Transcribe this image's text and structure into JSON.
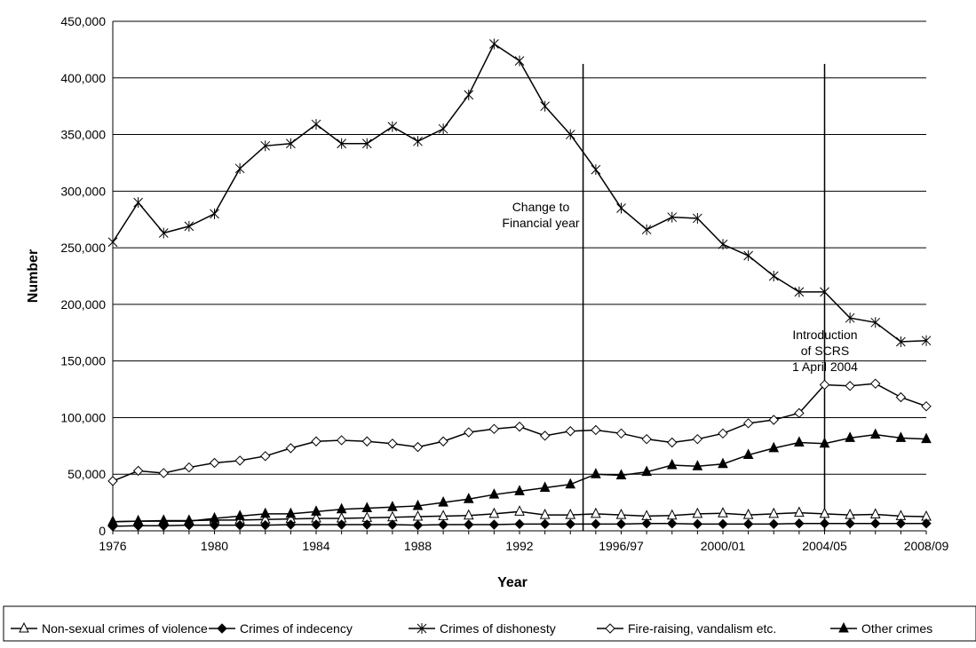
{
  "chart_data": {
    "type": "line",
    "title": "",
    "xlabel": "Year",
    "ylabel": "Number",
    "ylim": [
      0,
      450000
    ],
    "yticks": [
      "0",
      "50,000",
      "100,000",
      "150,000",
      "200,000",
      "250,000",
      "300,000",
      "350,000",
      "400,000",
      "450,000"
    ],
    "ytick_values": [
      0,
      50000,
      100000,
      150000,
      200000,
      250000,
      300000,
      350000,
      400000,
      450000
    ],
    "x": [
      "1976",
      "1977",
      "1978",
      "1979",
      "1980",
      "1981",
      "1982",
      "1983",
      "1984",
      "1985",
      "1986",
      "1987",
      "1988",
      "1989",
      "1990",
      "1991",
      "1992",
      "1993",
      "1994",
      "1995/96",
      "1996/97",
      "1997/98",
      "1998/99",
      "1999/00",
      "2000/01",
      "2001/02",
      "2002/03",
      "2003/04",
      "2004/05",
      "2005/06",
      "2006/07",
      "2007/08",
      "2008/09"
    ],
    "xtick_labels": [
      {
        "label": "1976",
        "index": 0
      },
      {
        "label": "1980",
        "index": 4
      },
      {
        "label": "1984",
        "index": 8
      },
      {
        "label": "1988",
        "index": 12
      },
      {
        "label": "1992",
        "index": 16
      },
      {
        "label": "1996/97",
        "index": 20
      },
      {
        "label": "2000/01",
        "index": 24
      },
      {
        "label": "2004/05",
        "index": 28
      },
      {
        "label": "2008/09",
        "index": 32
      }
    ],
    "grid": "horizontal",
    "legend_position": "bottom",
    "series": [
      {
        "name": "Non-sexual crimes of violence",
        "marker": "open-triangle",
        "values": [
          8000,
          8500,
          9000,
          9000,
          9500,
          9500,
          10000,
          10500,
          11000,
          11000,
          11500,
          12000,
          12500,
          13000,
          13500,
          15000,
          17000,
          14000,
          14000,
          15000,
          14000,
          13000,
          13500,
          15000,
          15500,
          14000,
          15000,
          16000,
          15000,
          14000,
          14500,
          13000,
          12500
        ]
      },
      {
        "name": "Crimes of indecency",
        "marker": "filled-diamond",
        "values": [
          4000,
          4500,
          4500,
          5000,
          5000,
          5000,
          5000,
          5500,
          5500,
          5500,
          5500,
          5500,
          5000,
          5500,
          5500,
          5500,
          6000,
          6000,
          6000,
          6000,
          6000,
          6500,
          6500,
          6000,
          6000,
          6000,
          6000,
          6500,
          6500,
          6500,
          6500,
          6500,
          6500
        ]
      },
      {
        "name": "Crimes of dishonesty",
        "marker": "asterisk",
        "values": [
          255000,
          290000,
          263000,
          269000,
          280000,
          320000,
          340000,
          342000,
          359000,
          342000,
          342000,
          357000,
          344000,
          355000,
          385000,
          430000,
          415000,
          375000,
          350000,
          319000,
          285000,
          266000,
          277000,
          276000,
          253000,
          243000,
          225000,
          211000,
          211000,
          188000,
          184000,
          167000,
          168000
        ]
      },
      {
        "name": "Fire-raising, vandalism etc.",
        "marker": "open-diamond",
        "values": [
          44000,
          53000,
          51000,
          56000,
          60000,
          62000,
          66000,
          73000,
          79000,
          80000,
          79000,
          77000,
          74000,
          79000,
          87000,
          90000,
          92000,
          84000,
          88000,
          89000,
          86000,
          81000,
          78000,
          81000,
          86000,
          95000,
          98000,
          104000,
          129000,
          128000,
          130000,
          118000,
          110000
        ]
      },
      {
        "name": "Other crimes",
        "marker": "filled-triangle",
        "values": [
          8000,
          8500,
          8500,
          8500,
          11000,
          13000,
          15000,
          15000,
          17000,
          19000,
          20000,
          21000,
          22000,
          25000,
          28000,
          32000,
          35000,
          38000,
          41000,
          50000,
          49000,
          52000,
          58000,
          57000,
          59000,
          67000,
          73000,
          78000,
          77000,
          82000,
          85000,
          82000,
          81000
        ]
      }
    ],
    "annotations": [
      {
        "text_lines": [
          "Change to",
          "Financial year"
        ],
        "x_position": 18.5
      },
      {
        "text_lines": [
          "Introduction",
          "of SCRS",
          "1 April 2004"
        ],
        "x_position": 28
      }
    ]
  }
}
